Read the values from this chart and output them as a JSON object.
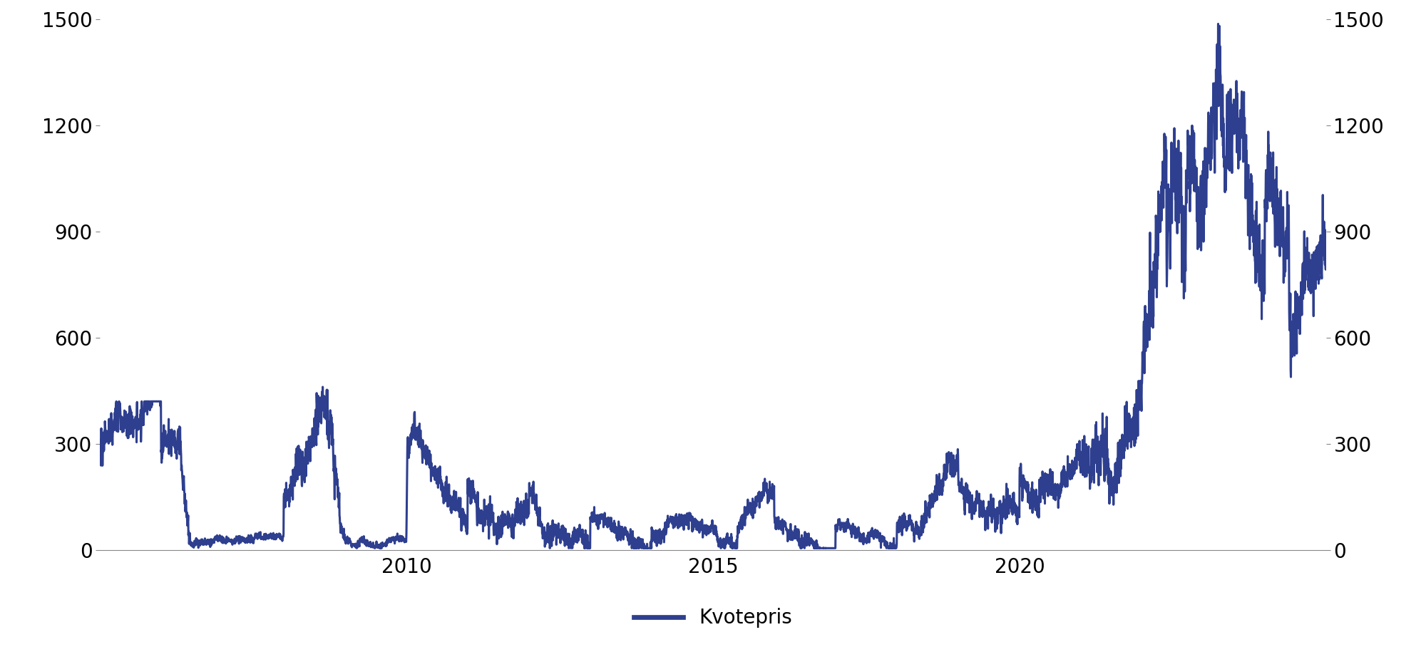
{
  "legend_label": "Kvotepris",
  "line_color": "#2e3f8f",
  "line_width": 2.2,
  "ylim": [
    0,
    1500
  ],
  "yticks": [
    0,
    300,
    600,
    900,
    1200,
    1500
  ],
  "xlim": [
    2005.0,
    2025.0
  ],
  "xticks": [
    2010,
    2015,
    2020
  ],
  "background_color": "#ffffff",
  "tick_labelsize": 20
}
